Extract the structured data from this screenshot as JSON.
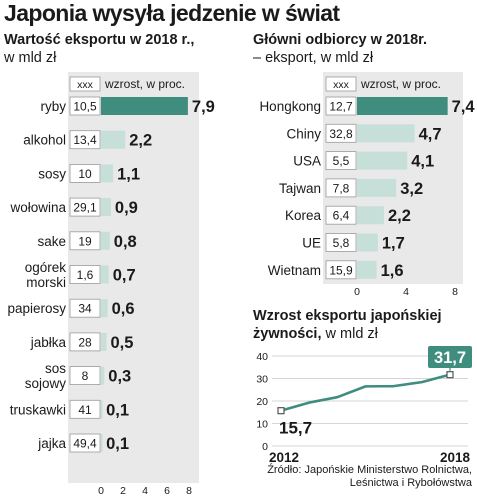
{
  "title": "Japonia wysyła jedzenie w świat",
  "colors": {
    "accent": "#3f8d7f",
    "bar": "#c7dfd9",
    "panel": "#e9e9e9",
    "line": "#3f8d7f",
    "text": "#1a1a1a"
  },
  "source": {
    "line1": "Źródło: Japońskie Ministerstwo Rolnictwa,",
    "line2": "Leśnictwa i Rybołówstwa"
  },
  "chart_data": [
    {
      "type": "bar",
      "orientation": "horizontal",
      "title": "Wartość eksportu w 2018 r.,",
      "subtitle": "w mld zł",
      "legend": {
        "box": "xxx",
        "label": "wzrost, w proc."
      },
      "categories": [
        "ryby",
        "alkohol",
        "sosy",
        "wołowina",
        "sake",
        "ogórek morski",
        "papierosy",
        "jabłka",
        "sos sojowy",
        "truskawki",
        "jajka"
      ],
      "category_lines": [
        [
          "ryby"
        ],
        [
          "alkohol"
        ],
        [
          "sosy"
        ],
        [
          "wołowina"
        ],
        [
          "sake"
        ],
        [
          "ogórek",
          "morski"
        ],
        [
          "papierosy"
        ],
        [
          "jabłka"
        ],
        [
          "sos",
          "sojowy"
        ],
        [
          "truskawki"
        ],
        [
          "jajka"
        ]
      ],
      "values": [
        7.9,
        2.2,
        1.1,
        0.9,
        0.8,
        0.7,
        0.6,
        0.5,
        0.3,
        0.1,
        0.1
      ],
      "value_labels": [
        "7,9",
        "2,2",
        "1,1",
        "0,9",
        "0,8",
        "0,7",
        "0,6",
        "0,5",
        "0,3",
        "0,1",
        "0,1"
      ],
      "growth_labels": [
        "10,5",
        "13,4",
        "10",
        "29,1",
        "19",
        "1,6",
        "34",
        "28",
        "8",
        "41",
        "49,4"
      ],
      "xlim": [
        0,
        8
      ],
      "xticks": [
        0,
        2,
        4,
        6,
        8
      ]
    },
    {
      "type": "bar",
      "orientation": "horizontal",
      "title": "Główni odbiorcy w 2018r.",
      "subtitle": "– eksport, w mld zł",
      "legend": {
        "box": "xxx",
        "label": "wzrost, w proc."
      },
      "categories": [
        "Hongkong",
        "Chiny",
        "USA",
        "Tajwan",
        "Korea",
        "UE",
        "Wietnam"
      ],
      "values": [
        7.4,
        4.7,
        4.1,
        3.2,
        2.2,
        1.7,
        1.6
      ],
      "value_labels": [
        "7,4",
        "4,7",
        "4,1",
        "3,2",
        "2,2",
        "1,7",
        "1,6"
      ],
      "growth_labels": [
        "12,7",
        "32,8",
        "5,5",
        "7,8",
        "6,4",
        "5,8",
        "15,9"
      ],
      "xlim": [
        0,
        8
      ],
      "xticks": [
        0,
        4,
        8
      ]
    },
    {
      "type": "line",
      "title": "Wzrost eksportu japońskiej",
      "title_line2": "żywności,",
      "title_unit": "w mld zł",
      "x": [
        2012,
        2013,
        2014,
        2015,
        2016,
        2017,
        2018
      ],
      "y": [
        15.7,
        19.3,
        21.7,
        26.5,
        26.6,
        28.4,
        31.7
      ],
      "start_label": "15,7",
      "end_label": "31,7",
      "xtick_labels": [
        "2012",
        "2018"
      ],
      "ylim": [
        0,
        40
      ],
      "yticks": [
        0,
        10,
        20,
        30,
        40
      ],
      "grid": true
    }
  ]
}
